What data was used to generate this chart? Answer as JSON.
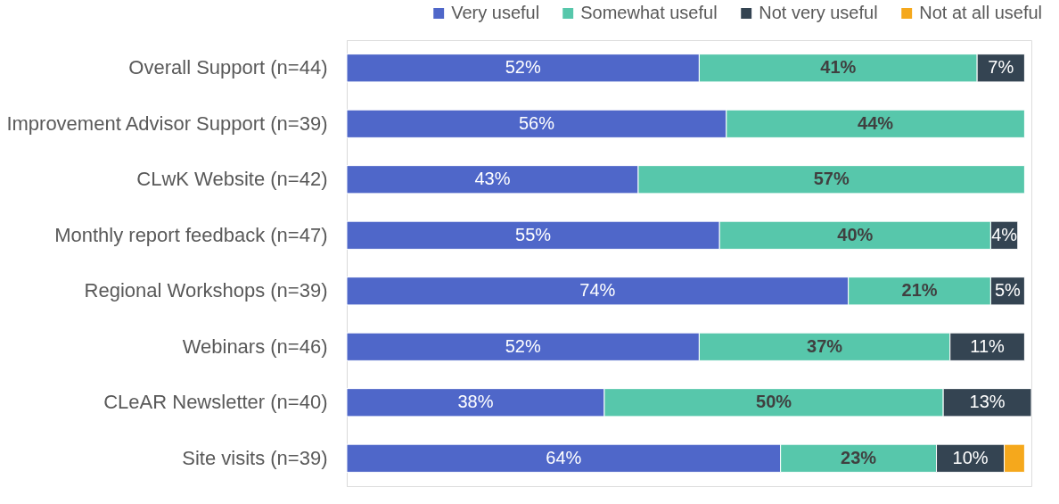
{
  "chart_data": {
    "type": "bar",
    "orientation": "horizontal",
    "stacked": true,
    "legend": "top right",
    "categories": [
      "Overall Support (n=44)",
      "Improvement Advisor Support (n=39)",
      "CLwK Website (n=42)",
      "Monthly report feedback (n=47)",
      "Regional Workshops (n=39)",
      "Webinars (n=46)",
      "CLeAR Newsletter (n=40)",
      "Site visits (n=39)"
    ],
    "series": [
      {
        "name": "Very useful",
        "color": "#4f67c9",
        "values": [
          52,
          56,
          43,
          55,
          74,
          52,
          38,
          64
        ],
        "value_labels": [
          "52%",
          "56%",
          "43%",
          "55%",
          "74%",
          "52%",
          "38%",
          "64%"
        ]
      },
      {
        "name": "Somewhat useful",
        "color": "#57c7ab",
        "values": [
          41,
          44,
          57,
          40,
          21,
          37,
          50,
          23
        ],
        "value_labels": [
          "41%",
          "44%",
          "57%",
          "40%",
          "21%",
          "37%",
          "50%",
          "23%"
        ]
      },
      {
        "name": "Not very useful",
        "color": "#344452",
        "values": [
          7,
          null,
          null,
          4,
          5,
          11,
          13,
          10
        ],
        "value_labels": [
          "7%",
          null,
          null,
          "4%",
          "5%",
          "11%",
          "13%",
          "10%"
        ]
      },
      {
        "name": "Not at all useful",
        "color": "#f5a81c",
        "values": [
          null,
          null,
          null,
          null,
          null,
          null,
          null,
          3
        ],
        "value_labels": [
          null,
          null,
          null,
          null,
          null,
          null,
          null,
          null
        ]
      }
    ]
  }
}
